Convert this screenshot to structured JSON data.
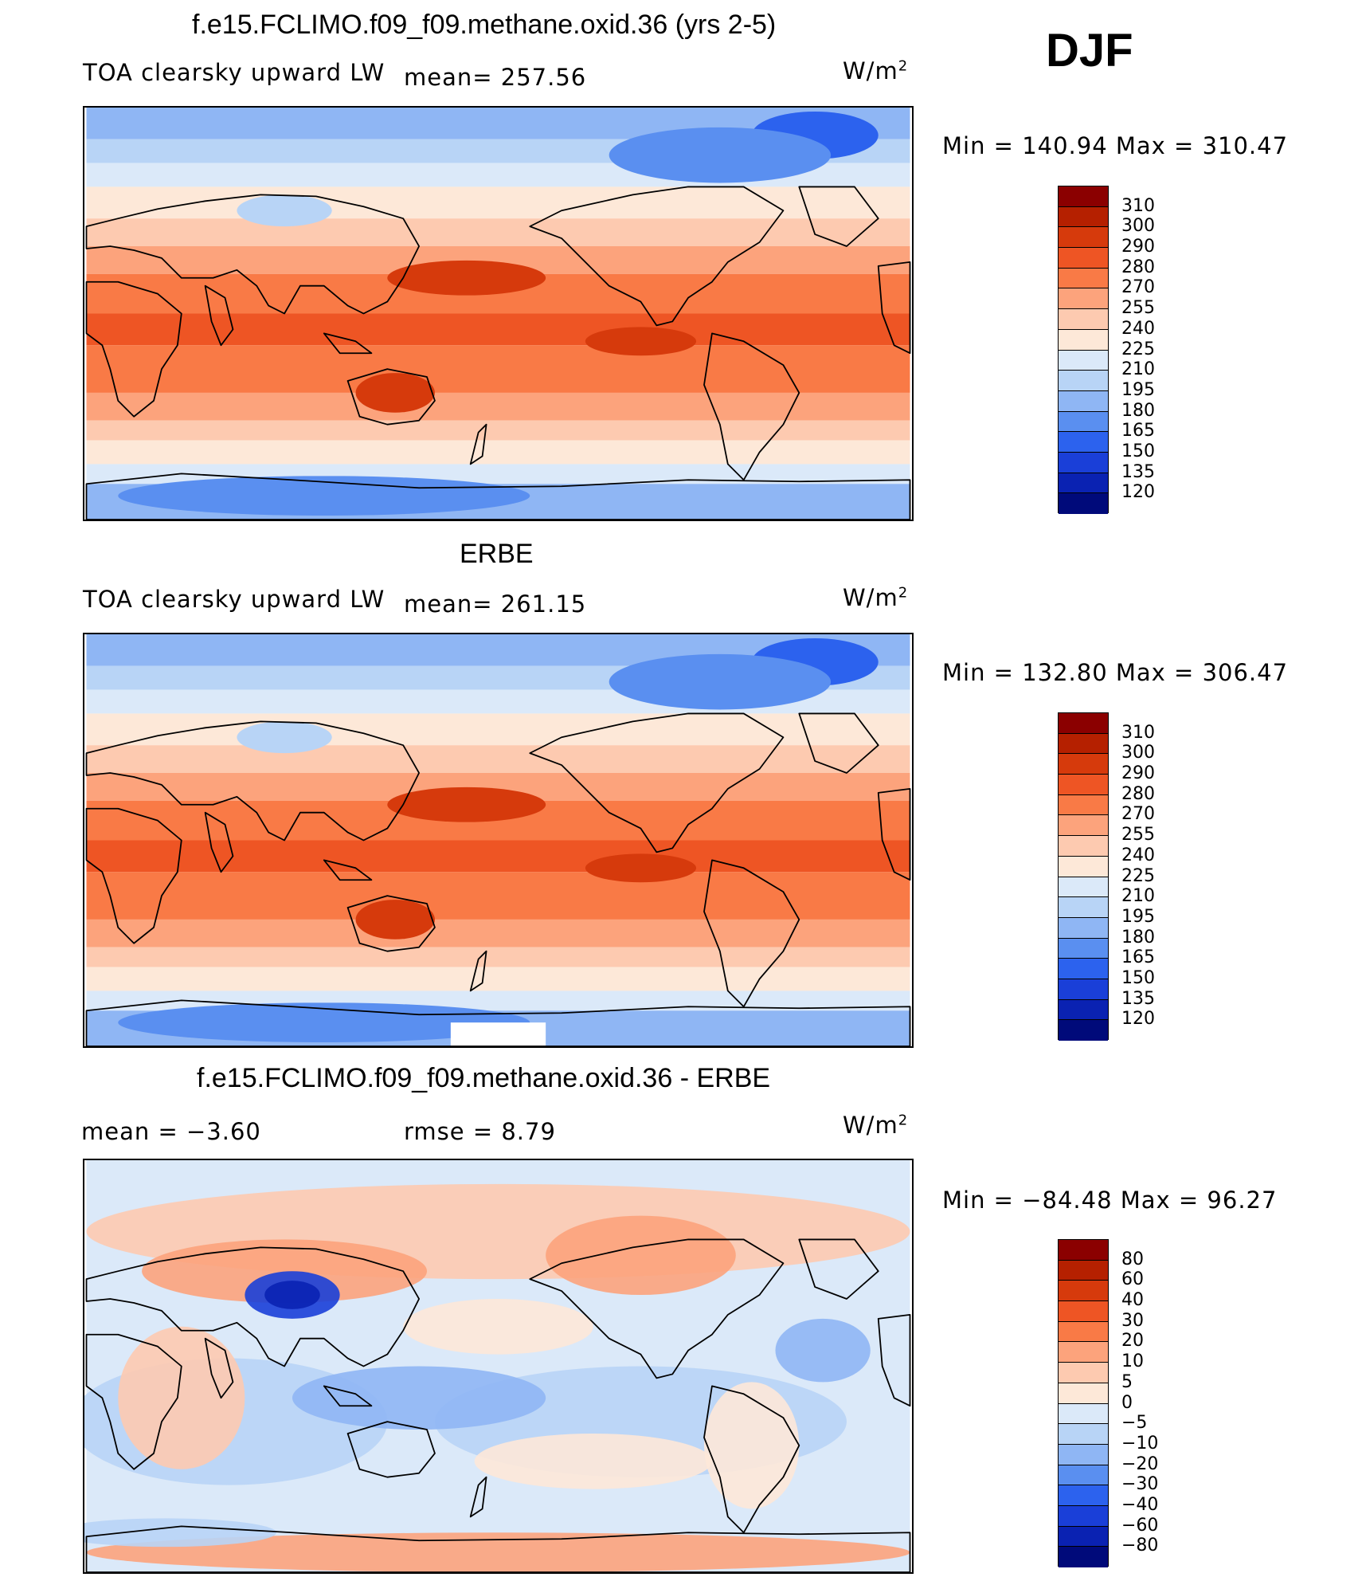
{
  "season": "DJF",
  "panels": [
    {
      "title": "f.e15.FCLIMO.f09_f09.methane.oxid.36 (yrs 2-5)",
      "left_label": "TOA clearsky upward LW",
      "stat_label": "mean= 257.56",
      "unit": "W/m",
      "unit_sup": "2",
      "minmax": "Min = 140.94 Max = 310.47",
      "kind": "model",
      "levels": [
        "310",
        "300",
        "290",
        "280",
        "270",
        "255",
        "240",
        "225",
        "210",
        "195",
        "180",
        "165",
        "150",
        "135",
        "120"
      ]
    },
    {
      "title": "ERBE",
      "left_label": "TOA clearsky upward LW",
      "stat_label": "mean= 261.15",
      "unit": "W/m",
      "unit_sup": "2",
      "minmax": "Min = 132.80 Max = 306.47",
      "kind": "obs",
      "levels": [
        "310",
        "300",
        "290",
        "280",
        "270",
        "255",
        "240",
        "225",
        "210",
        "195",
        "180",
        "165",
        "150",
        "135",
        "120"
      ]
    },
    {
      "title": "f.e15.FCLIMO.f09_f09.methane.oxid.36 - ERBE",
      "left_label": "mean =   −3.60",
      "stat_label": "rmse =    8.79",
      "unit": "W/m",
      "unit_sup": "2",
      "minmax": "Min = −84.48 Max =  96.27",
      "kind": "diff",
      "levels": [
        "80",
        "60",
        "40",
        "30",
        "20",
        "10",
        "5",
        "0",
        "−5",
        "−10",
        "−20",
        "−30",
        "−40",
        "−60",
        "−80"
      ]
    }
  ],
  "colors": {
    "abs_scale": [
      "#8b0000",
      "#b52000",
      "#d63a0c",
      "#ee5524",
      "#f97a46",
      "#fca37c",
      "#fdcab0",
      "#fde8d8",
      "#dbe9f9",
      "#b8d4f6",
      "#8fb6f4",
      "#5a8ff0",
      "#2c62ee",
      "#1a3fd8",
      "#0a22b2",
      "#000a7a"
    ],
    "diff_scale": [
      "#8b0000",
      "#b52000",
      "#d63a0c",
      "#ee5524",
      "#f97a46",
      "#fca37c",
      "#fdcab0",
      "#fde8d8",
      "#dbe9f9",
      "#b8d4f6",
      "#8fb6f4",
      "#5a8ff0",
      "#2c62ee",
      "#1a3fd8",
      "#0a22b2",
      "#000a7a"
    ]
  }
}
